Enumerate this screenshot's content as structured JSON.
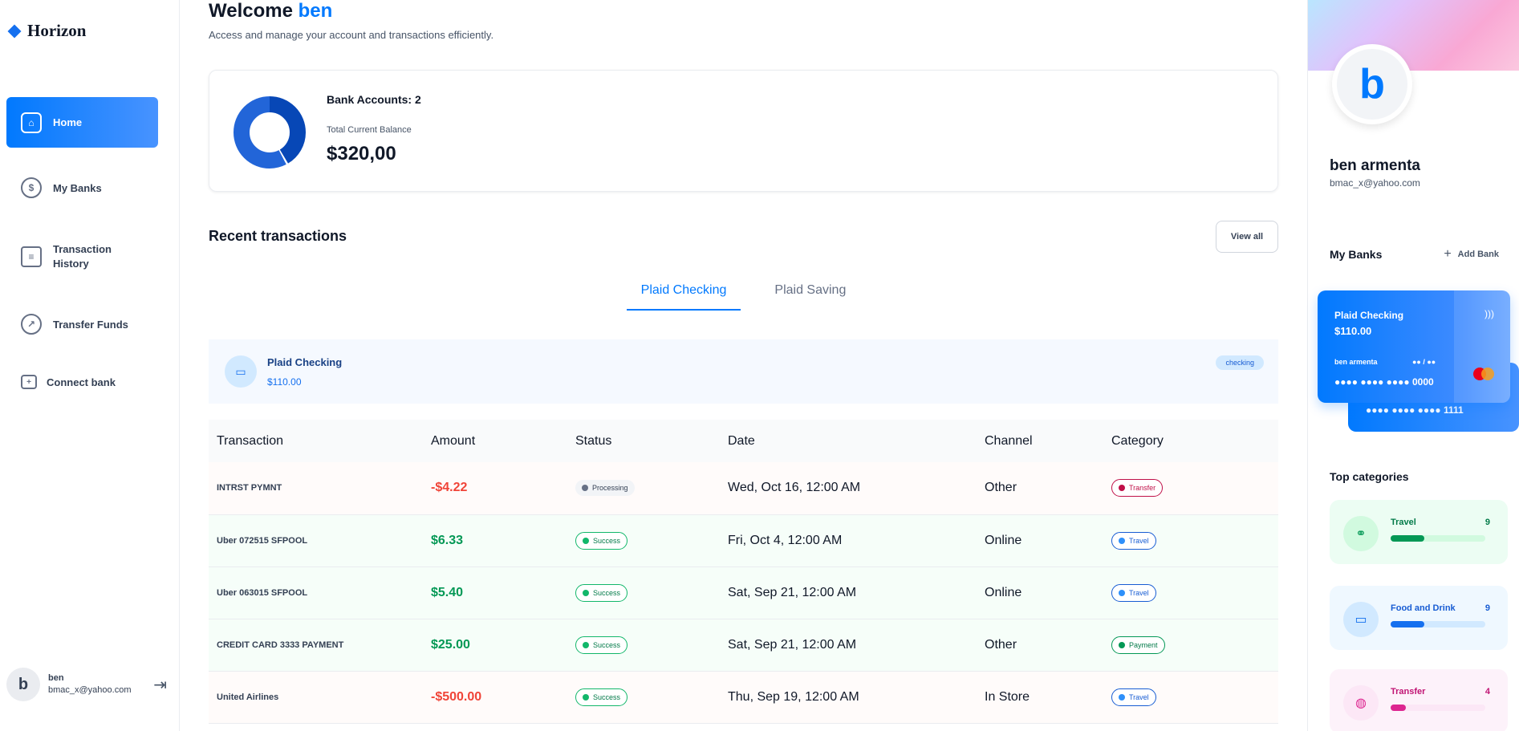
{
  "app": {
    "name": "Horizon"
  },
  "sidebar": {
    "items": [
      {
        "label": "Home",
        "icon": "home-icon"
      },
      {
        "label": "My Banks",
        "icon": "dollar-icon"
      },
      {
        "label": "Transaction History",
        "icon": "receipt-icon"
      },
      {
        "label": "Transfer Funds",
        "icon": "transfer-icon"
      },
      {
        "label": "Connect bank",
        "icon": "connect-bank-icon"
      }
    ],
    "user": {
      "initial": "b",
      "name": "ben",
      "email": "bmac_x@yahoo.com"
    }
  },
  "header": {
    "welcome": "Welcome",
    "username": "ben",
    "subtitle": "Access and manage your account and transactions efficiently."
  },
  "balance": {
    "accounts_label": "Bank Accounts: 2",
    "total_label": "Total Current Balance",
    "total_amount": "$320,00"
  },
  "recent": {
    "title": "Recent transactions",
    "view_all": "View all",
    "tabs": [
      "Plaid Checking",
      "Plaid Saving"
    ],
    "bank": {
      "name": "Plaid Checking",
      "amount": "$110.00",
      "type": "checking"
    }
  },
  "table": {
    "headers": [
      "Transaction",
      "Amount",
      "Status",
      "Date",
      "Channel",
      "Category"
    ],
    "rows": [
      {
        "name": "INTRST PYMNT",
        "amount": "-$4.22",
        "status": "Processing",
        "date": "Wed, Oct 16, 12:00 AM",
        "channel": "Other",
        "category": "Transfer"
      },
      {
        "name": "Uber 072515 SFPOOL",
        "amount": "$6.33",
        "status": "Success",
        "date": "Fri, Oct 4, 12:00 AM",
        "channel": "Online",
        "category": "Travel"
      },
      {
        "name": "Uber 063015 SFPOOL",
        "amount": "$5.40",
        "status": "Success",
        "date": "Sat, Sep 21, 12:00 AM",
        "channel": "Online",
        "category": "Travel"
      },
      {
        "name": "CREDIT CARD 3333 PAYMENT",
        "amount": "$25.00",
        "status": "Success",
        "date": "Sat, Sep 21, 12:00 AM",
        "channel": "Other",
        "category": "Payment"
      },
      {
        "name": "United Airlines",
        "amount": "-$500.00",
        "status": "Success",
        "date": "Thu, Sep 19, 12:00 AM",
        "channel": "In Store",
        "category": "Travel"
      }
    ]
  },
  "profile": {
    "initial": "b",
    "name": "ben armenta",
    "email": "bmac_x@yahoo.com",
    "my_banks": "My Banks",
    "add_bank": "Add Bank"
  },
  "cards": [
    {
      "name": "Plaid Checking",
      "balance": "$110.00",
      "holder": "ben armenta",
      "expiry": "●● / ●●",
      "number": "●●●● ●●●● ●●●● 0000"
    },
    {
      "number": "●●●● ●●●● ●●●● 1111"
    }
  ],
  "top_categories": {
    "title": "Top categories",
    "items": [
      {
        "name": "Travel",
        "count": "9",
        "progress": 0.36,
        "colors": {
          "bg": "#ecfdf3",
          "icon_bg": "#d1fadf",
          "text": "#027a48",
          "bar": "#d1fadf",
          "fill": "#039855"
        }
      },
      {
        "name": "Food and Drink",
        "count": "9",
        "progress": 0.36,
        "colors": {
          "bg": "#eff8ff",
          "icon_bg": "#d1e9ff",
          "text": "#175cd3",
          "bar": "#d1e9ff",
          "fill": "#1570ef"
        }
      },
      {
        "name": "Transfer",
        "count": "4",
        "progress": 0.16,
        "colors": {
          "bg": "#fdf2fa",
          "icon_bg": "#fce7f6",
          "text": "#c11574",
          "bar": "#fce7f6",
          "fill": "#dd2590"
        }
      }
    ]
  }
}
